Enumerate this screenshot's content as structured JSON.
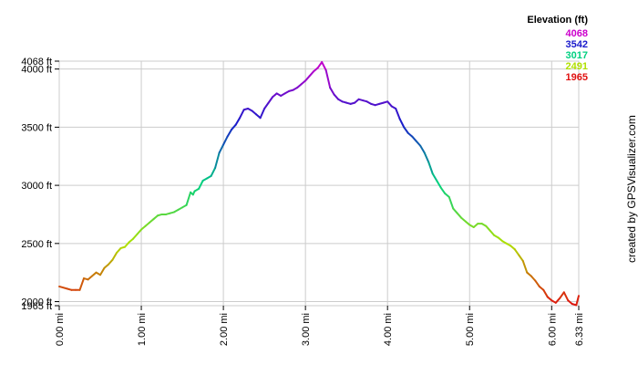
{
  "chart_data": {
    "type": "line",
    "title": "",
    "xlabel": "",
    "ylabel": "",
    "xlim": [
      0,
      6.33
    ],
    "ylim": [
      1965,
      4068
    ],
    "x_ticks": [
      {
        "value": 0,
        "label": "0.00 mi"
      },
      {
        "value": 1,
        "label": "1.00 mi"
      },
      {
        "value": 2,
        "label": "2.00 mi"
      },
      {
        "value": 3,
        "label": "3.00 mi"
      },
      {
        "value": 4,
        "label": "4.00 mi"
      },
      {
        "value": 5,
        "label": "5.00 mi"
      },
      {
        "value": 6,
        "label": "6.00 mi"
      },
      {
        "value": 6.33,
        "label": "6.33 mi"
      }
    ],
    "y_ticks": [
      {
        "value": 1965,
        "label": "1965 ft"
      },
      {
        "value": 2000,
        "label": "2000 ft"
      },
      {
        "value": 2500,
        "label": "2500 ft"
      },
      {
        "value": 3000,
        "label": "3000 ft"
      },
      {
        "value": 3500,
        "label": "3500 ft"
      },
      {
        "value": 4000,
        "label": "4000 ft"
      },
      {
        "value": 4068,
        "label": "4068 ft"
      }
    ],
    "grid": true,
    "legend": {
      "title": "Elevation (ft)",
      "position": "top-right",
      "entries": [
        {
          "label": "4068",
          "color": "#cc00cc"
        },
        {
          "label": "3542",
          "color": "#1a1acc"
        },
        {
          "label": "3017",
          "color": "#00d080"
        },
        {
          "label": "2491",
          "color": "#b0e000"
        },
        {
          "label": "1965",
          "color": "#e01010"
        }
      ]
    },
    "series": [
      {
        "x": [
          0,
          0.1,
          0.15,
          0.2,
          0.25,
          0.3,
          0.35,
          0.4,
          0.45,
          0.5,
          0.55,
          0.6,
          0.65,
          0.7,
          0.75,
          0.8,
          0.85,
          0.9,
          0.95,
          1.0,
          1.05,
          1.1,
          1.15,
          1.2,
          1.25,
          1.3,
          1.35,
          1.4,
          1.45,
          1.5,
          1.55,
          1.6,
          1.63,
          1.65,
          1.7,
          1.75,
          1.8,
          1.85,
          1.9,
          1.95,
          2.0,
          2.05,
          2.1,
          2.15,
          2.2,
          2.25,
          2.3,
          2.35,
          2.4,
          2.45,
          2.5,
          2.55,
          2.6,
          2.65,
          2.7,
          2.75,
          2.8,
          2.85,
          2.9,
          2.95,
          3.0,
          3.05,
          3.1,
          3.15,
          3.2,
          3.25,
          3.3,
          3.35,
          3.4,
          3.45,
          3.5,
          3.55,
          3.6,
          3.65,
          3.7,
          3.75,
          3.8,
          3.85,
          3.9,
          3.95,
          4.0,
          4.05,
          4.1,
          4.15,
          4.2,
          4.25,
          4.3,
          4.35,
          4.4,
          4.45,
          4.5,
          4.55,
          4.6,
          4.65,
          4.7,
          4.75,
          4.8,
          4.85,
          4.9,
          4.95,
          5.0,
          5.05,
          5.1,
          5.15,
          5.2,
          5.25,
          5.3,
          5.35,
          5.4,
          5.45,
          5.5,
          5.55,
          5.6,
          5.65,
          5.7,
          5.75,
          5.8,
          5.85,
          5.9,
          5.95,
          6.0,
          6.05,
          6.1,
          6.15,
          6.2,
          6.25,
          6.3,
          6.33
        ],
        "y": [
          2130,
          2110,
          2100,
          2100,
          2100,
          2200,
          2190,
          2220,
          2250,
          2230,
          2290,
          2320,
          2360,
          2420,
          2460,
          2470,
          2510,
          2540,
          2580,
          2620,
          2650,
          2680,
          2710,
          2740,
          2750,
          2750,
          2760,
          2770,
          2790,
          2810,
          2830,
          2940,
          2920,
          2950,
          2970,
          3040,
          3060,
          3080,
          3150,
          3280,
          3350,
          3420,
          3480,
          3520,
          3580,
          3650,
          3660,
          3640,
          3610,
          3580,
          3660,
          3710,
          3760,
          3790,
          3770,
          3790,
          3810,
          3820,
          3840,
          3870,
          3900,
          3940,
          3980,
          4010,
          4060,
          3990,
          3840,
          3780,
          3740,
          3720,
          3710,
          3700,
          3710,
          3740,
          3730,
          3720,
          3700,
          3690,
          3700,
          3710,
          3720,
          3680,
          3660,
          3570,
          3500,
          3450,
          3420,
          3380,
          3340,
          3280,
          3200,
          3100,
          3040,
          2980,
          2930,
          2900,
          2800,
          2760,
          2720,
          2690,
          2660,
          2640,
          2670,
          2670,
          2650,
          2610,
          2570,
          2550,
          2520,
          2500,
          2480,
          2450,
          2400,
          2350,
          2250,
          2220,
          2180,
          2130,
          2100,
          2040,
          2010,
          1990,
          2030,
          2080,
          2010,
          1980,
          1970,
          2050
        ]
      }
    ]
  },
  "credit": "created by GPSVisualizer.com"
}
